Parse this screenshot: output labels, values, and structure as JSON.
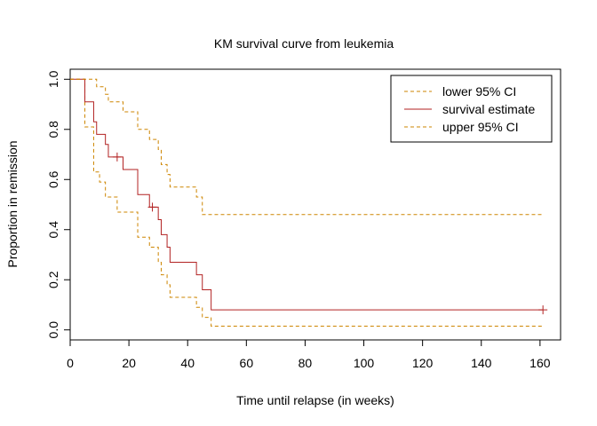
{
  "chart_data": {
    "type": "line",
    "title": "KM survival curve from leukemia",
    "xlabel": "Time until relapse (in weeks)",
    "ylabel": "Proportion in remission",
    "xlim": [
      0,
      167
    ],
    "ylim": [
      -0.04,
      1.04
    ],
    "x_ticks": [
      0,
      20,
      40,
      60,
      80,
      100,
      120,
      140,
      160
    ],
    "y_ticks": [
      0.0,
      0.2,
      0.4,
      0.6,
      0.8,
      1.0
    ],
    "x_tick_labels": [
      "0",
      "20",
      "40",
      "60",
      "80",
      "100",
      "120",
      "140",
      "160"
    ],
    "y_tick_labels": [
      "0.0",
      "0.2",
      "0.4",
      "0.6",
      "0.8",
      "1.0"
    ],
    "legend_position": "top-right",
    "grid": false,
    "series": [
      {
        "name": "lower 95% CI",
        "style": "dashed",
        "color": "#CD8500",
        "x": [
          0,
          5,
          8,
          10,
          12,
          16,
          23,
          27,
          30,
          31,
          33,
          34,
          43,
          45,
          48,
          161
        ],
        "y": [
          1.0,
          0.81,
          0.63,
          0.59,
          0.53,
          0.47,
          0.37,
          0.33,
          0.27,
          0.22,
          0.18,
          0.13,
          0.09,
          0.05,
          0.015,
          0.015
        ]
      },
      {
        "name": "survival estimate",
        "style": "solid",
        "color": "#B22222",
        "x": [
          0,
          5,
          8,
          9,
          12,
          13,
          18,
          23,
          27,
          30,
          31,
          33,
          34,
          43,
          45,
          48,
          161
        ],
        "y": [
          1.0,
          0.91,
          0.83,
          0.78,
          0.74,
          0.69,
          0.64,
          0.54,
          0.49,
          0.44,
          0.38,
          0.33,
          0.27,
          0.22,
          0.16,
          0.08,
          0.08
        ],
        "censored": [
          {
            "x": 16,
            "y": 0.69
          },
          {
            "x": 28,
            "y": 0.49
          },
          {
            "x": 161,
            "y": 0.08
          }
        ]
      },
      {
        "name": "upper 95% CI",
        "style": "dashed",
        "color": "#CD8500",
        "x": [
          0,
          8,
          9,
          12,
          13,
          18,
          23,
          27,
          30,
          31,
          33,
          34,
          43,
          45,
          48,
          161
        ],
        "y": [
          1.0,
          1.0,
          0.97,
          0.94,
          0.91,
          0.87,
          0.8,
          0.76,
          0.72,
          0.66,
          0.62,
          0.57,
          0.53,
          0.46,
          0.46,
          0.46
        ]
      }
    ]
  }
}
